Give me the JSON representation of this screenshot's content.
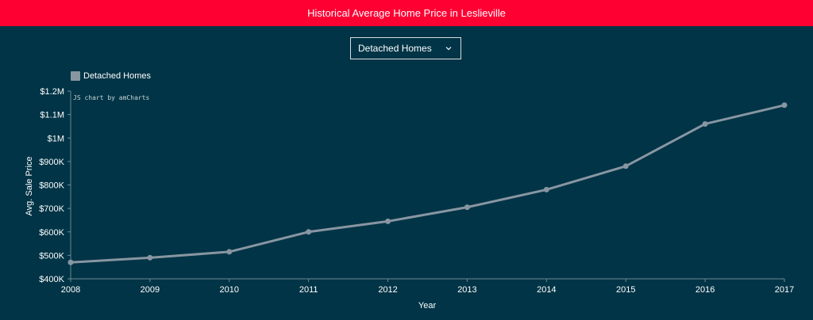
{
  "header": {
    "title": "Historical Average Home Price in Leslieville"
  },
  "selector": {
    "selected": "Detached Homes",
    "icon": "chevron-down-icon"
  },
  "credit": "JS chart by amCharts",
  "colors": {
    "header": "#ff0033",
    "background": "#003446",
    "series": "#8896a2"
  },
  "chart_data": {
    "type": "line",
    "title": "",
    "xlabel": "Year",
    "ylabel": "Avg. Sale Price",
    "x": [
      "2008",
      "2009",
      "2010",
      "2011",
      "2012",
      "2013",
      "2014",
      "2015",
      "2016",
      "2017"
    ],
    "series": [
      {
        "name": "Detached Homes",
        "values": [
          470000,
          490000,
          515000,
          600000,
          645000,
          705000,
          780000,
          880000,
          1060000,
          1140000
        ]
      }
    ],
    "y_ticks": [
      "$400K",
      "$500K",
      "$600K",
      "$700K",
      "$800K",
      "$900K",
      "$1M",
      "$1.1M",
      "$1.2M"
    ],
    "ylim": [
      400000,
      1200000
    ],
    "grid": false,
    "legend": "top-left"
  }
}
